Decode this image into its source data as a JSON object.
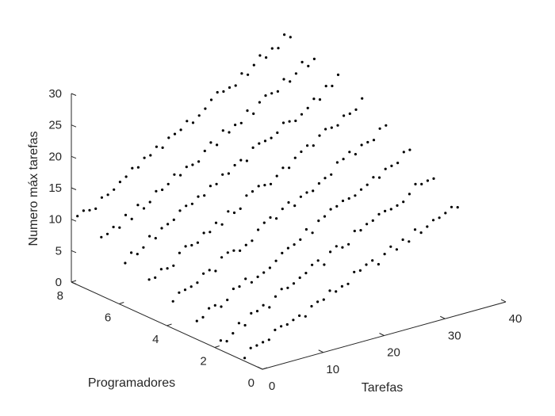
{
  "chart_data": {
    "type": "scatter",
    "title": "",
    "xlabel": "Tarefas",
    "ylabel": "Programadores",
    "zlabel": "Numero máx tarefas",
    "xlim": [
      0,
      40
    ],
    "ylim": [
      0,
      8
    ],
    "zlim": [
      0,
      30
    ],
    "x_ticks": [
      "0",
      "10",
      "20",
      "30",
      "40"
    ],
    "y_ticks": [
      "0",
      "2",
      "4",
      "6",
      "8"
    ],
    "z_ticks": [
      "0",
      "5",
      "10",
      "15",
      "20",
      "25",
      "30"
    ],
    "grid": false,
    "marker_color": "#000000",
    "points_per_row": 36,
    "x_start": 1,
    "y_values": [
      1,
      2,
      3,
      4,
      5,
      6,
      7,
      8
    ],
    "z_endpoints": [
      {
        "y": 1,
        "z_first": 0.3,
        "z_last": 15
      },
      {
        "y": 2,
        "z_first": 0.7,
        "z_last": 18
      },
      {
        "y": 3,
        "z_first": 2,
        "z_last": 20
      },
      {
        "y": 4,
        "z_first": 3.5,
        "z_last": 22
      },
      {
        "y": 5,
        "z_first": 5,
        "z_last": 24
      },
      {
        "y": 6,
        "z_first": 6.5,
        "z_last": 26
      },
      {
        "y": 7,
        "z_first": 8,
        "z_last": 28
      },
      {
        "y": 8,
        "z_first": 9.5,
        "z_last": 30
      }
    ]
  }
}
